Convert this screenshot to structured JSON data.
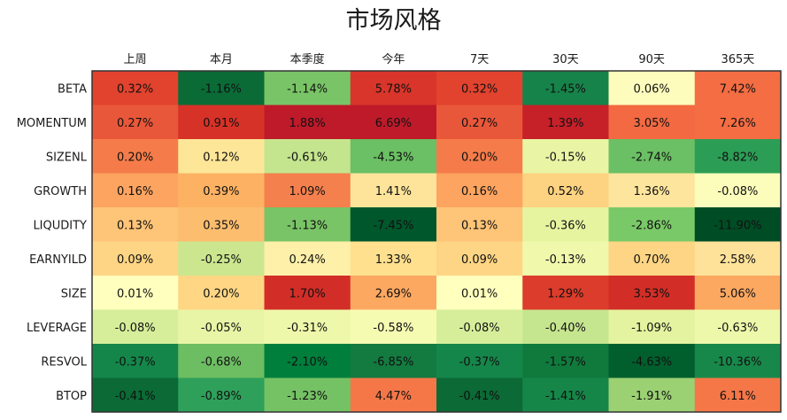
{
  "chart_data": {
    "type": "heatmap",
    "title": "市场风格",
    "columns": [
      "上周",
      "本月",
      "本季度",
      "今年",
      "7天",
      "30天",
      "90天",
      "365天"
    ],
    "rows": [
      "BETA",
      "MOMENTUM",
      "SIZENL",
      "GROWTH",
      "LIQUDITY",
      "EARNYILD",
      "SIZE",
      "LEVERAGE",
      "RESVOL",
      "BTOP"
    ],
    "values": [
      [
        0.32,
        -1.16,
        -1.14,
        5.78,
        0.32,
        -1.45,
        0.06,
        7.42
      ],
      [
        0.27,
        0.91,
        1.88,
        6.69,
        0.27,
        1.39,
        3.05,
        7.26
      ],
      [
        0.2,
        0.12,
        -0.61,
        -4.53,
        0.2,
        -0.15,
        -2.74,
        -8.82
      ],
      [
        0.16,
        0.39,
        1.09,
        1.41,
        0.16,
        0.52,
        1.36,
        -0.08
      ],
      [
        0.13,
        0.35,
        -1.13,
        -7.45,
        0.13,
        -0.36,
        -2.86,
        -11.9
      ],
      [
        0.09,
        -0.25,
        0.24,
        1.33,
        0.09,
        -0.13,
        0.7,
        2.58
      ],
      [
        0.01,
        0.2,
        1.7,
        2.69,
        0.01,
        1.29,
        3.53,
        5.06
      ],
      [
        -0.08,
        -0.05,
        -0.31,
        -0.58,
        -0.08,
        -0.4,
        -1.09,
        -0.63
      ],
      [
        -0.37,
        -0.68,
        -2.1,
        -6.85,
        -0.37,
        -1.57,
        -4.63,
        -10.36
      ],
      [
        -0.41,
        -0.89,
        -1.23,
        4.47,
        -0.41,
        -1.41,
        -1.91,
        6.11
      ]
    ],
    "labels": [
      [
        "0.32%",
        "-1.16%",
        "-1.14%",
        "5.78%",
        "0.32%",
        "-1.45%",
        "0.06%",
        "7.42%"
      ],
      [
        "0.27%",
        "0.91%",
        "1.88%",
        "6.69%",
        "0.27%",
        "1.39%",
        "3.05%",
        "7.26%"
      ],
      [
        "0.20%",
        "0.12%",
        "-0.61%",
        "-4.53%",
        "0.20%",
        "-0.15%",
        "-2.74%",
        "-8.82%"
      ],
      [
        "0.16%",
        "0.39%",
        "1.09%",
        "1.41%",
        "0.16%",
        "0.52%",
        "1.36%",
        "-0.08%"
      ],
      [
        "0.13%",
        "0.35%",
        "-1.13%",
        "-7.45%",
        "0.13%",
        "-0.36%",
        "-2.86%",
        "-11.90%"
      ],
      [
        "0.09%",
        "-0.25%",
        "0.24%",
        "1.33%",
        "0.09%",
        "-0.13%",
        "0.70%",
        "2.58%"
      ],
      [
        "0.01%",
        "0.20%",
        "1.70%",
        "2.69%",
        "0.01%",
        "1.29%",
        "3.53%",
        "5.06%"
      ],
      [
        "-0.08%",
        "-0.05%",
        "-0.31%",
        "-0.58%",
        "-0.08%",
        "-0.40%",
        "-1.09%",
        "-0.63%"
      ],
      [
        "-0.37%",
        "-0.68%",
        "-2.10%",
        "-6.85%",
        "-0.37%",
        "-1.57%",
        "-4.63%",
        "-10.36%"
      ],
      [
        "-0.41%",
        "-0.89%",
        "-1.23%",
        "4.47%",
        "-0.41%",
        "-1.41%",
        "-1.91%",
        "6.11%"
      ]
    ],
    "colors": [
      [
        "#e2432e",
        "#0b6b37",
        "#79c466",
        "#d9352a",
        "#e2432e",
        "#16834a",
        "#fefcbc",
        "#f46d43"
      ],
      [
        "#e9573a",
        "#d63228",
        "#be1a2a",
        "#be1a2a",
        "#e9573a",
        "#c62029",
        "#f26942",
        "#f46d43"
      ],
      [
        "#f57c4a",
        "#fde698",
        "#c4e58e",
        "#6bbf64",
        "#f57c4a",
        "#e9f5a4",
        "#6bbf64",
        "#2c9d55"
      ],
      [
        "#fca460",
        "#fdb263",
        "#f4804d",
        "#fee49a",
        "#fca460",
        "#fdd280",
        "#fee59d",
        "#fcfcbb"
      ],
      [
        "#fec477",
        "#fdbd6f",
        "#79c466",
        "#00572c",
        "#fec477",
        "#e6f4a0",
        "#7ac968",
        "#004d25"
      ],
      [
        "#fed584",
        "#cbe68f",
        "#fef0a8",
        "#fee08e",
        "#fed584",
        "#f0f8ac",
        "#fed584",
        "#fee29a"
      ],
      [
        "#ffffbe",
        "#fed684",
        "#d22e27",
        "#fca861",
        "#ffffbe",
        "#dc3c2b",
        "#d22e27",
        "#fca861"
      ],
      [
        "#d6ee9a",
        "#e8f5a6",
        "#eef8ab",
        "#f6fbb2",
        "#d6ee9a",
        "#c6e58f",
        "#e4f39f",
        "#eef8ab"
      ],
      [
        "#15864a",
        "#6dbd62",
        "#007e3c",
        "#137a40",
        "#15864a",
        "#0f7a3c",
        "#005f2c",
        "#18884a"
      ],
      [
        "#0b6a35",
        "#2ea05a",
        "#74c264",
        "#f57748",
        "#0b6a35",
        "#168548",
        "#9bd173",
        "#f57748"
      ]
    ]
  }
}
